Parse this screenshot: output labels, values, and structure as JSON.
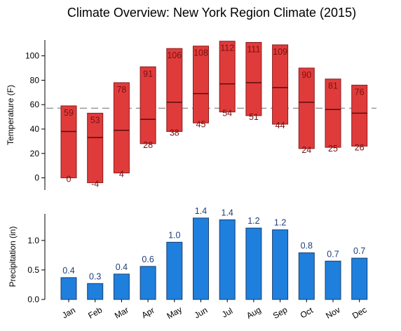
{
  "title": "Climate Overview: New York Region Climate (2015)",
  "colors": {
    "temp_bar": "#e03b3b",
    "temp_edge": "#8b1a1a",
    "temp_label": "#7a1010",
    "mean_line": "#999999",
    "precip_bar": "#1f7fdd",
    "precip_edge": "#1a3f6f",
    "precip_label": "#1f3f7a"
  },
  "chart_data": [
    {
      "type": "bar",
      "subtype": "floating-range",
      "categories": [
        "Jan",
        "Feb",
        "Mar",
        "Apr",
        "May",
        "Jun",
        "Jul",
        "Aug",
        "Sep",
        "Oct",
        "Nov",
        "Dec"
      ],
      "low": [
        0,
        -4,
        4,
        28,
        38,
        45,
        54,
        51,
        44,
        24,
        25,
        26
      ],
      "high": [
        59,
        53,
        78,
        91,
        106,
        108,
        112,
        111,
        109,
        90,
        81,
        76
      ],
      "mid": [
        38,
        33,
        39,
        48,
        62,
        69,
        77,
        78,
        74,
        62,
        56,
        53
      ],
      "low_labels": [
        "0",
        "-4",
        "4",
        "28",
        "38",
        "45",
        "54",
        "51",
        "44",
        "24",
        "25",
        "26"
      ],
      "high_labels": [
        "59",
        "53",
        "78",
        "91",
        "106",
        "108",
        "112",
        "111",
        "109",
        "90",
        "81",
        "76"
      ],
      "reference_line": 57,
      "ylabel": "Temperature (F)",
      "yticks": [
        0,
        20,
        40,
        60,
        80,
        100
      ],
      "ytick_labels": [
        "0",
        "20",
        "40",
        "60",
        "80",
        "100"
      ],
      "ylim": [
        -10,
        113
      ]
    },
    {
      "type": "bar",
      "categories": [
        "Jan",
        "Feb",
        "Mar",
        "Apr",
        "May",
        "Jun",
        "Jul",
        "Aug",
        "Sep",
        "Oct",
        "Nov",
        "Dec"
      ],
      "values": [
        0.37,
        0.27,
        0.43,
        0.56,
        0.97,
        1.38,
        1.35,
        1.21,
        1.18,
        0.79,
        0.65,
        0.7
      ],
      "value_labels": [
        "0.4",
        "0.3",
        "0.4",
        "0.6",
        "1.0",
        "1.4",
        "1.4",
        "1.2",
        "1.2",
        "0.8",
        "0.7",
        "0.7"
      ],
      "ylabel": "Precipitation (in)",
      "yticks": [
        0,
        0.5,
        1.0
      ],
      "ytick_labels": [
        "0.0",
        "0.5",
        "1.0"
      ],
      "ylim": [
        0,
        1.45
      ]
    }
  ]
}
